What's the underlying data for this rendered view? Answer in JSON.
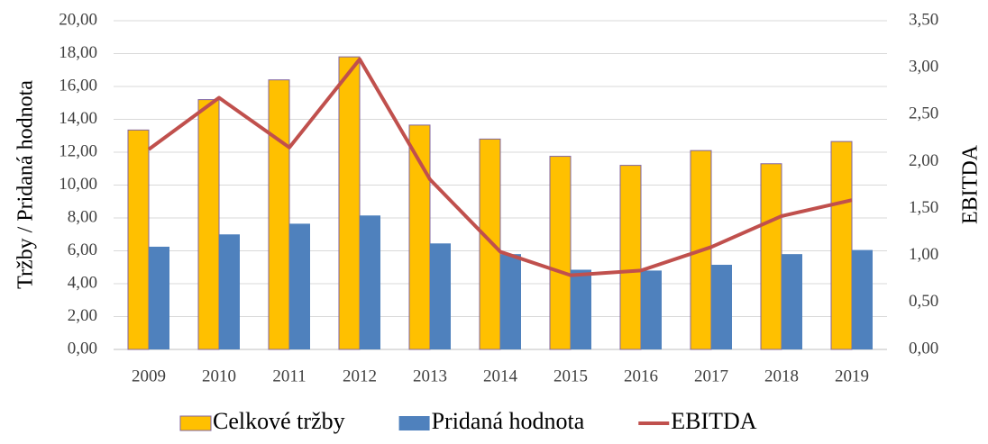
{
  "chart_data": {
    "type": "bar_line",
    "categories": [
      "2009",
      "2010",
      "2011",
      "2012",
      "2013",
      "2014",
      "2015",
      "2016",
      "2017",
      "2018",
      "2019"
    ],
    "series": [
      {
        "name": "Celkové tržby",
        "color": "#ffc000",
        "type": "bar",
        "values": [
          13.35,
          15.2,
          16.4,
          17.8,
          13.65,
          12.8,
          11.75,
          11.2,
          12.1,
          11.3,
          12.65
        ]
      },
      {
        "name": "Pridaná hodnota",
        "color": "#4f81bd",
        "type": "bar",
        "values": [
          6.25,
          7.0,
          7.65,
          8.15,
          6.45,
          5.8,
          4.85,
          4.8,
          5.15,
          5.8,
          6.05
        ]
      },
      {
        "name": "EBITDA",
        "color": "#c0504d",
        "type": "line",
        "axis": "y2",
        "values": [
          2.13,
          2.68,
          2.15,
          3.09,
          1.81,
          1.04,
          0.79,
          0.84,
          1.09,
          1.42,
          1.59
        ]
      }
    ],
    "ylabel": "Tržby / Pridaná hodnota",
    "y2label": "EBITDA",
    "ylim": [
      0,
      20
    ],
    "yticks": [
      {
        "value": 0,
        "label": "0,00"
      },
      {
        "value": 2,
        "label": "2,00"
      },
      {
        "value": 4,
        "label": "4,00"
      },
      {
        "value": 6,
        "label": "6,00"
      },
      {
        "value": 8,
        "label": "8,00"
      },
      {
        "value": 10,
        "label": "10,00"
      },
      {
        "value": 12,
        "label": "12,00"
      },
      {
        "value": 14,
        "label": "14,00"
      },
      {
        "value": 16,
        "label": "16,00"
      },
      {
        "value": 18,
        "label": "18,00"
      },
      {
        "value": 20,
        "label": "20,00"
      }
    ],
    "y2lim": [
      0,
      3.5
    ],
    "y2ticks": [
      {
        "value": 0,
        "label": "0,00"
      },
      {
        "value": 0.5,
        "label": "0,50"
      },
      {
        "value": 1,
        "label": "1,00"
      },
      {
        "value": 1.5,
        "label": "1,50"
      },
      {
        "value": 2,
        "label": "2,00"
      },
      {
        "value": 2.5,
        "label": "2,50"
      },
      {
        "value": 3,
        "label": "3,00"
      },
      {
        "value": 3.5,
        "label": "3,50"
      }
    ],
    "grid": true,
    "legend": "bottom"
  }
}
